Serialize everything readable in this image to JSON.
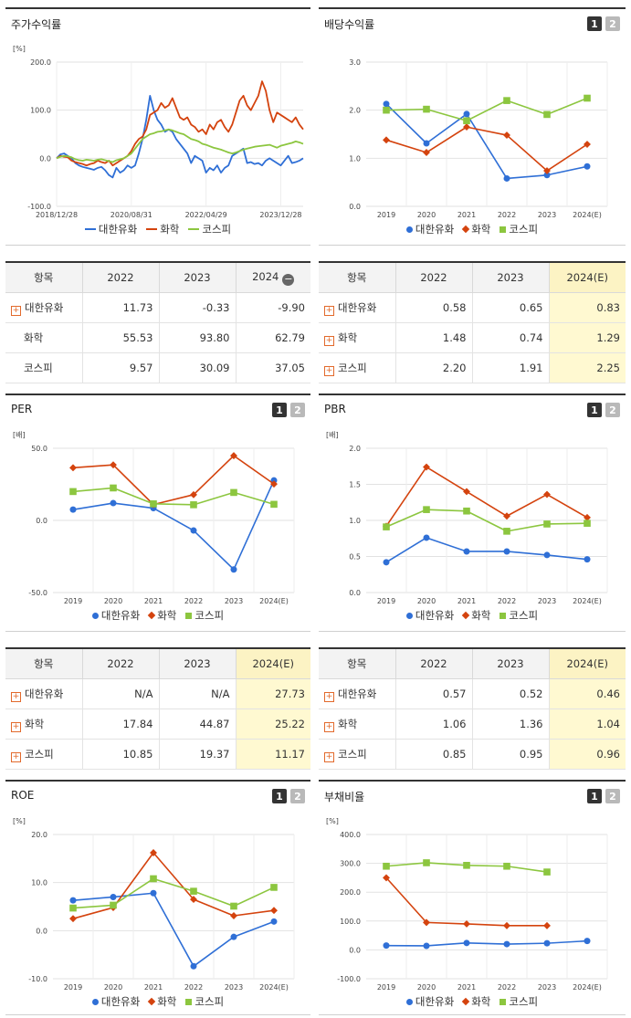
{
  "legend_names": [
    "대한유화",
    "화학",
    "코스피"
  ],
  "colors": {
    "c1": "#2f6fd6",
    "c2": "#d4430e",
    "c3": "#8cc63f"
  },
  "pager": {
    "p1": "1",
    "p2": "2"
  },
  "panels": {
    "stock": {
      "title": "주가수익률"
    },
    "dividend": {
      "title": "배당수익률"
    },
    "per": {
      "title": "PER"
    },
    "pbr": {
      "title": "PBR"
    },
    "roe": {
      "title": "ROE"
    },
    "debt": {
      "title": "부채비율"
    }
  },
  "tables": {
    "stock": {
      "headers": [
        "항목",
        "2022",
        "2023",
        "2024"
      ],
      "rows": [
        {
          "name": "대한유화",
          "plus": true,
          "v": [
            "11.73",
            "-0.33",
            "-9.90"
          ]
        },
        {
          "name": "화학",
          "plus": false,
          "v": [
            "55.53",
            "93.80",
            "62.79"
          ]
        },
        {
          "name": "코스피",
          "plus": false,
          "v": [
            "9.57",
            "30.09",
            "37.05"
          ]
        }
      ]
    },
    "dividend": {
      "headers": [
        "항목",
        "2022",
        "2023",
        "2024(E)"
      ],
      "rows": [
        {
          "name": "대한유화",
          "plus": true,
          "v": [
            "0.58",
            "0.65",
            "0.83"
          ]
        },
        {
          "name": "화학",
          "plus": true,
          "v": [
            "1.48",
            "0.74",
            "1.29"
          ]
        },
        {
          "name": "코스피",
          "plus": true,
          "v": [
            "2.20",
            "1.91",
            "2.25"
          ]
        }
      ]
    },
    "per": {
      "headers": [
        "항목",
        "2022",
        "2023",
        "2024(E)"
      ],
      "rows": [
        {
          "name": "대한유화",
          "plus": true,
          "v": [
            "N/A",
            "N/A",
            "27.73"
          ]
        },
        {
          "name": "화학",
          "plus": true,
          "v": [
            "17.84",
            "44.87",
            "25.22"
          ]
        },
        {
          "name": "코스피",
          "plus": true,
          "v": [
            "10.85",
            "19.37",
            "11.17"
          ]
        }
      ]
    },
    "pbr": {
      "headers": [
        "항목",
        "2022",
        "2023",
        "2024(E)"
      ],
      "rows": [
        {
          "name": "대한유화",
          "plus": true,
          "v": [
            "0.57",
            "0.52",
            "0.46"
          ]
        },
        {
          "name": "화학",
          "plus": true,
          "v": [
            "1.06",
            "1.36",
            "1.04"
          ]
        },
        {
          "name": "코스피",
          "plus": true,
          "v": [
            "0.85",
            "0.95",
            "0.96"
          ]
        }
      ]
    }
  },
  "chart_data": [
    {
      "id": "stock",
      "type": "line",
      "unit_label": "[%]",
      "ylim": [
        -100,
        200
      ],
      "yticks": [
        -100,
        0,
        100,
        200
      ],
      "ytick_labels": [
        "-100.0",
        "0.0",
        "100.0",
        "200.0"
      ],
      "xticks": [
        0,
        20,
        40,
        60
      ],
      "xtick_labels": [
        "2018/12/28",
        "2020/08/31",
        "2022/04/29",
        "2023/12/28"
      ],
      "x_max": 66,
      "series": [
        {
          "name": "대한유화",
          "color": "#2f6fd6",
          "values": [
            0,
            8,
            10,
            5,
            0,
            -10,
            -15,
            -18,
            -20,
            -22,
            -24,
            -20,
            -18,
            -25,
            -35,
            -40,
            -20,
            -30,
            -25,
            -15,
            -20,
            -15,
            10,
            40,
            80,
            130,
            100,
            80,
            70,
            55,
            60,
            55,
            40,
            30,
            20,
            10,
            -10,
            5,
            0,
            -5,
            -30,
            -20,
            -25,
            -15,
            -30,
            -20,
            -15,
            5,
            10,
            15,
            20,
            -10,
            -8,
            -12,
            -10,
            -15,
            -5,
            0,
            -5,
            -10,
            -15,
            -5,
            5,
            -10,
            -8,
            -5,
            0
          ]
        },
        {
          "name": "화학",
          "color": "#d4430e",
          "values": [
            0,
            5,
            3,
            2,
            -5,
            -8,
            -10,
            -12,
            -15,
            -12,
            -10,
            -5,
            -8,
            -10,
            -5,
            -15,
            -10,
            -5,
            0,
            5,
            15,
            30,
            40,
            45,
            60,
            90,
            95,
            100,
            115,
            105,
            110,
            125,
            105,
            85,
            80,
            85,
            70,
            65,
            55,
            60,
            50,
            70,
            60,
            75,
            80,
            65,
            55,
            70,
            95,
            120,
            130,
            110,
            100,
            115,
            130,
            160,
            140,
            100,
            75,
            95,
            90,
            85,
            80,
            75,
            85,
            70,
            60
          ]
        },
        {
          "name": "코스피",
          "color": "#8cc63f",
          "values": [
            0,
            3,
            5,
            4,
            2,
            -2,
            -4,
            -5,
            -3,
            -4,
            -5,
            -3,
            -2,
            -4,
            -6,
            -8,
            -4,
            -2,
            0,
            5,
            10,
            20,
            30,
            40,
            45,
            50,
            52,
            55,
            56,
            58,
            60,
            58,
            55,
            52,
            50,
            45,
            40,
            38,
            35,
            30,
            28,
            25,
            22,
            20,
            18,
            15,
            12,
            10,
            12,
            15,
            18,
            20,
            22,
            24,
            25,
            26,
            27,
            28,
            25,
            22,
            26,
            28,
            30,
            32,
            35,
            33,
            30
          ]
        }
      ]
    },
    {
      "id": "dividend",
      "type": "line",
      "unit_label": "",
      "ylim": [
        0,
        3
      ],
      "yticks": [
        0,
        1,
        2,
        3
      ],
      "ytick_labels": [
        "0.0",
        "1.0",
        "2.0",
        "3.0"
      ],
      "categories": [
        "2019",
        "2020",
        "2021",
        "2022",
        "2023",
        "2024(E)"
      ],
      "series": [
        {
          "name": "대한유화",
          "color": "#2f6fd6",
          "marker": "dot",
          "values": [
            2.13,
            1.31,
            1.92,
            0.58,
            0.65,
            0.83
          ]
        },
        {
          "name": "화학",
          "color": "#d4430e",
          "marker": "diamond",
          "values": [
            1.38,
            1.12,
            1.65,
            1.48,
            0.74,
            1.29
          ]
        },
        {
          "name": "코스피",
          "color": "#8cc63f",
          "marker": "square",
          "values": [
            2.0,
            2.02,
            1.78,
            2.2,
            1.91,
            2.25
          ]
        }
      ]
    },
    {
      "id": "per",
      "type": "line",
      "unit_label": "[배]",
      "ylim": [
        -50,
        50
      ],
      "yticks": [
        -50,
        0,
        50
      ],
      "ytick_labels": [
        "-50.0",
        "0.0",
        "50.0"
      ],
      "categories": [
        "2019",
        "2020",
        "2021",
        "2022",
        "2023",
        "2024(E)"
      ],
      "series": [
        {
          "name": "대한유화",
          "color": "#2f6fd6",
          "marker": "dot",
          "values": [
            7.5,
            12,
            8.5,
            -7,
            -34,
            27.73
          ]
        },
        {
          "name": "화학",
          "color": "#d4430e",
          "marker": "diamond",
          "values": [
            36.5,
            38.5,
            11,
            17.84,
            44.87,
            25.22
          ]
        },
        {
          "name": "코스피",
          "color": "#8cc63f",
          "marker": "square",
          "values": [
            20,
            22.5,
            11.5,
            10.85,
            19.37,
            11.17
          ]
        }
      ]
    },
    {
      "id": "pbr",
      "type": "line",
      "unit_label": "[배]",
      "ylim": [
        0,
        2
      ],
      "yticks": [
        0,
        0.5,
        1,
        1.5,
        2
      ],
      "ytick_labels": [
        "0.0",
        "0.5",
        "1.0",
        "1.5",
        "2.0"
      ],
      "categories": [
        "2019",
        "2020",
        "2021",
        "2022",
        "2023",
        "2024(E)"
      ],
      "series": [
        {
          "name": "대한유화",
          "color": "#2f6fd6",
          "marker": "dot",
          "values": [
            0.42,
            0.76,
            0.57,
            0.57,
            0.52,
            0.46
          ]
        },
        {
          "name": "화학",
          "color": "#d4430e",
          "marker": "diamond",
          "values": [
            0.92,
            1.74,
            1.4,
            1.06,
            1.36,
            1.04
          ]
        },
        {
          "name": "코스피",
          "color": "#8cc63f",
          "marker": "square",
          "values": [
            0.91,
            1.15,
            1.13,
            0.85,
            0.95,
            0.96
          ]
        }
      ]
    },
    {
      "id": "roe",
      "type": "line",
      "unit_label": "[%]",
      "ylim": [
        -10,
        20
      ],
      "yticks": [
        -10,
        0,
        10,
        20
      ],
      "ytick_labels": [
        "-10.0",
        "0.0",
        "10.0",
        "20.0"
      ],
      "categories": [
        "2019",
        "2020",
        "2021",
        "2022",
        "2023",
        "2024(E)"
      ],
      "series": [
        {
          "name": "대한유화",
          "color": "#2f6fd6",
          "marker": "dot",
          "values": [
            6.3,
            7.0,
            7.8,
            -7.4,
            -1.3,
            1.9
          ]
        },
        {
          "name": "화학",
          "color": "#d4430e",
          "marker": "diamond",
          "values": [
            2.5,
            4.8,
            16.2,
            6.5,
            3.1,
            4.2
          ]
        },
        {
          "name": "코스피",
          "color": "#8cc63f",
          "marker": "square",
          "values": [
            4.7,
            5.3,
            10.8,
            8.2,
            5.1,
            9.0
          ]
        }
      ]
    },
    {
      "id": "debt",
      "type": "line",
      "unit_label": "[%]",
      "ylim": [
        -100,
        400
      ],
      "yticks": [
        -100,
        0,
        100,
        200,
        300,
        400
      ],
      "ytick_labels": [
        "-100.0",
        "0.0",
        "100.0",
        "200.0",
        "300.0",
        "400.0"
      ],
      "categories": [
        "2019",
        "2020",
        "2021",
        "2022",
        "2023",
        "2024(E)"
      ],
      "series": [
        {
          "name": "대한유화",
          "color": "#2f6fd6",
          "marker": "dot",
          "values": [
            15,
            14,
            24,
            20,
            23,
            31
          ]
        },
        {
          "name": "화학",
          "color": "#d4430e",
          "marker": "diamond",
          "values": [
            250,
            95,
            90,
            84,
            84,
            null
          ]
        },
        {
          "name": "코스피",
          "color": "#8cc63f",
          "marker": "square",
          "values": [
            290,
            302,
            293,
            290,
            270,
            null
          ]
        }
      ]
    }
  ]
}
